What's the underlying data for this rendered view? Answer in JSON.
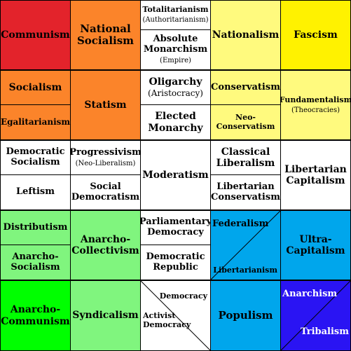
{
  "colors": {
    "red": "#e3232b",
    "orange": "#fb842a",
    "white": "#ffffff",
    "light_yellow": "#fffa7e",
    "yellow": "#fff200",
    "light_green": "#80f57e",
    "green": "#00ff00",
    "sky_blue": "#00a6ec",
    "blue": "#2a14f3",
    "border": "#000000"
  },
  "cells": {
    "communism": "Communism",
    "national_socialism": "National Socialism",
    "totalitarianism": "Totalitarianism",
    "authoritarianism": "(Authoritarianism)",
    "absolute_monarchism": "Absolute Monarchism",
    "empire": "(Empire)",
    "nationalism": "Nationalism",
    "fascism": "Fascism",
    "socialism": "Socialism",
    "egalitarianism": "Egalitarianism",
    "statism": "Statism",
    "oligarchy": "Oligarchy",
    "aristocracy": "(Aristocracy)",
    "elected_monarchy": "Elected Monarchy",
    "conservatism": "Conservatism",
    "neo_conservatism": "Neo-Conservatism",
    "fundamentalism": "Fundamentalism",
    "theocracies": "(Theocracies)",
    "democratic_socialism": "Democratic Socialism",
    "leftism": "Leftism",
    "progressivism": "Progressivism",
    "neo_liberalism": "(Neo-Liberalism)",
    "social_democratism": "Social Democratism",
    "moderatism": "Moderatism",
    "classical_liberalism": "Classical Liberalism",
    "libertarian_conservatism": "Libertarian Conservatism",
    "libertarian_capitalism": "Libertarian Capitalism",
    "distributism": "Distributism",
    "anarcho_socialism": "Anarcho-Socialism",
    "anarcho_collectivism": "Anarcho-Collectivism",
    "parliamentary_democracy": "Parliamentary Democracy",
    "democratic_republic": "Democratic Republic",
    "federalism": "Federalism",
    "libertarianism": "Libertarianism",
    "ultra_capitalism": "Ultra-Capitalism",
    "anarcho_communism": "Anarcho-Communism",
    "syndicalism": "Syndicalism",
    "democracy": "Democracy",
    "activist_democracy": "Activist Democracy",
    "populism": "Populism",
    "anarchism": "Anarchism",
    "tribalism": "Tribalism"
  }
}
